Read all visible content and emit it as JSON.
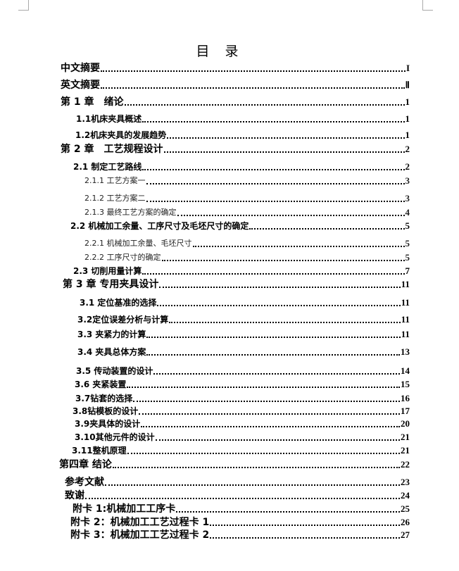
{
  "title": "目 录",
  "entries": [
    {
      "label": "中文摘要",
      "page": "I"
    },
    {
      "label": "英文摘要",
      "page": "Ⅱ"
    },
    {
      "label": "第 1 章　绪论",
      "page": "1"
    },
    {
      "label": "1.1机床夹具概述",
      "page": "1"
    },
    {
      "label": "1.2机床夹具的发展趋势",
      "page": "1"
    },
    {
      "label": "第 2 章　工艺规程设计",
      "page": "2"
    },
    {
      "label": "2.1 制定工艺路线",
      "page": "2"
    },
    {
      "label": "2.1.1 工艺方案一",
      "page": "3"
    },
    {
      "label": "2.1.2 工艺方案二",
      "page": "3"
    },
    {
      "label": "2.1.3 最终工艺方案的确定",
      "page": "4"
    },
    {
      "label": "2.2 机械加工余量、工序尺寸及毛坯尺寸的确定",
      "page": "5"
    },
    {
      "label": "2.2.1 机械加工余量、毛坯尺寸",
      "page": "5"
    },
    {
      "label": "2.2.2 工序尺寸的确定",
      "page": "5"
    },
    {
      "label": "2.3 切削用量计算",
      "page": "7"
    },
    {
      "label": "第 3 章 专用夹具设计",
      "page": "11"
    },
    {
      "label": "3.1 定位基准的选择",
      "page": "11"
    },
    {
      "label": "3.2定位误差分析与计算",
      "page": "11"
    },
    {
      "label": "3.3 夹紧力的计算",
      "page": "11"
    },
    {
      "label": "3.4 夹具总体方案",
      "page": "13"
    },
    {
      "label": "3.5 传动装置的设计",
      "page": "14"
    },
    {
      "label": "3.6 夹紧装置",
      "page": "15"
    },
    {
      "label": "3.7钻套的选择",
      "page": "16"
    },
    {
      "label": "3.8钻模板的设计",
      "page": "17"
    },
    {
      "label": "3.9夹具体的设计",
      "page": "20"
    },
    {
      "label": "3.10其他元件的设计",
      "page": "21"
    },
    {
      "label": "3.11整机原理",
      "page": "21"
    },
    {
      "label": "第四章 结论",
      "page": "22"
    },
    {
      "label": "参考文献",
      "page": "23"
    },
    {
      "label": "致谢",
      "page": "24"
    },
    {
      "label": "附卡 1:机械加工工序卡",
      "page": "25"
    },
    {
      "label": "附卡 2：机械加工工艺过程卡 1",
      "page": "26"
    },
    {
      "label": "附卡 3：机械加工工艺过程卡 2",
      "page": "27"
    }
  ]
}
